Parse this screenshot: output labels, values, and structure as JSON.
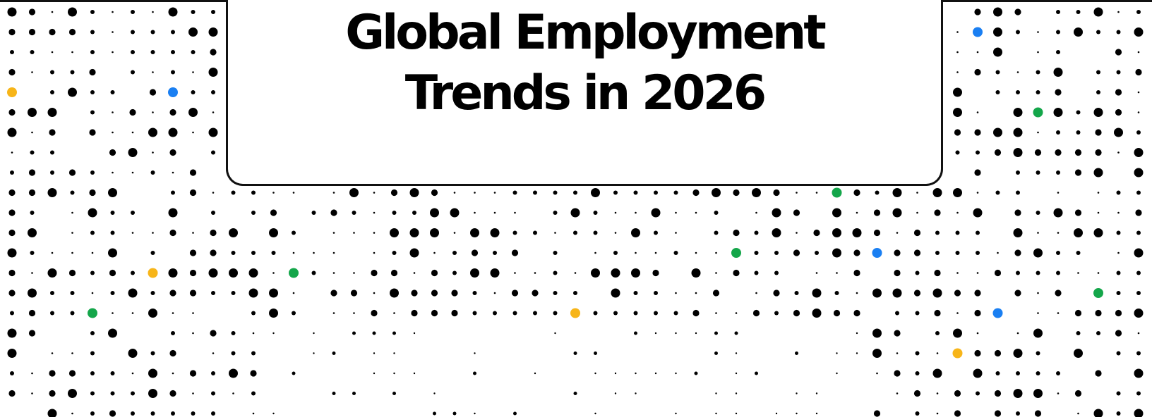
{
  "title": {
    "line1": "Global Employment",
    "line2": "Trends in 2026"
  },
  "colors": {
    "dot": "#000000",
    "accent_yellow": "#F7B519",
    "accent_blue": "#1A7FF2",
    "accent_green": "#14A64A",
    "border": "#111111",
    "background": "#FFFFFF"
  }
}
